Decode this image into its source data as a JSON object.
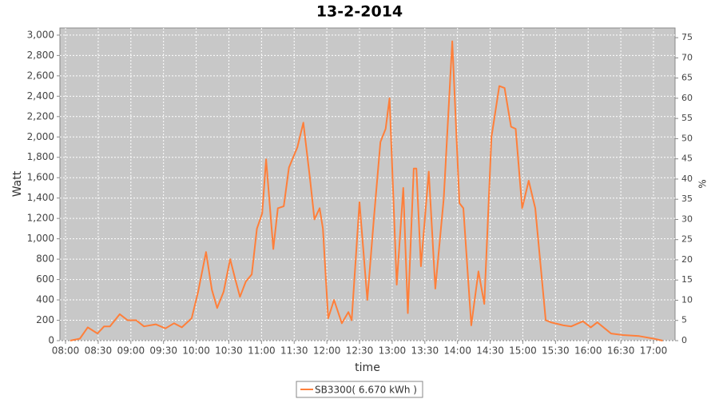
{
  "chart_data": {
    "type": "line",
    "title": "13-2-2014",
    "x_label": "time",
    "y_label": "Watt",
    "y2_label": "%",
    "xlim": [
      7.914,
      17.33
    ],
    "ylim": [
      0,
      3070
    ],
    "y2lim": [
      0,
      77.4
    ],
    "grid": true,
    "legend": "bottom",
    "xticks": [
      {
        "value": 8,
        "label": "08:00"
      },
      {
        "value": 8.5,
        "label": "08:30"
      },
      {
        "value": 9,
        "label": "09:00"
      },
      {
        "value": 9.5,
        "label": "09:30"
      },
      {
        "value": 10,
        "label": "10:00"
      },
      {
        "value": 10.5,
        "label": "10:30"
      },
      {
        "value": 11,
        "label": "11:00"
      },
      {
        "value": 11.5,
        "label": "11:30"
      },
      {
        "value": 12,
        "label": "12:00"
      },
      {
        "value": 12.5,
        "label": "12:30"
      },
      {
        "value": 13,
        "label": "13:00"
      },
      {
        "value": 13.5,
        "label": "13:30"
      },
      {
        "value": 14,
        "label": "14:00"
      },
      {
        "value": 14.5,
        "label": "14:30"
      },
      {
        "value": 15,
        "label": "15:00"
      },
      {
        "value": 15.5,
        "label": "15:30"
      },
      {
        "value": 16,
        "label": "16:00"
      },
      {
        "value": 16.5,
        "label": "16:30"
      },
      {
        "value": 17,
        "label": "17:00"
      }
    ],
    "yticks": [
      0,
      200,
      400,
      600,
      800,
      {
        "value": 1000,
        "label": "1,000"
      },
      {
        "value": 1200,
        "label": "1,200"
      },
      {
        "value": 1400,
        "label": "1,400"
      },
      {
        "value": 1600,
        "label": "1,600"
      },
      {
        "value": 1800,
        "label": "1,800"
      },
      {
        "value": 2000,
        "label": "2,000"
      },
      {
        "value": 2200,
        "label": "2,200"
      },
      {
        "value": 2400,
        "label": "2,400"
      },
      {
        "value": 2600,
        "label": "2,600"
      },
      {
        "value": 2800,
        "label": "2,800"
      },
      {
        "value": 3000,
        "label": "3,000"
      }
    ],
    "y2ticks": [
      0,
      5,
      10,
      15,
      20,
      25,
      30,
      35,
      40,
      45,
      50,
      55,
      60,
      65,
      70,
      75
    ],
    "x": [
      8.07,
      8.22,
      8.34,
      8.49,
      8.59,
      8.68,
      8.83,
      8.95,
      9.08,
      9.2,
      9.38,
      9.53,
      9.66,
      9.78,
      9.93,
      10.03,
      10.15,
      10.24,
      10.32,
      10.42,
      10.52,
      10.6,
      10.67,
      10.76,
      10.85,
      10.93,
      11.01,
      11.07,
      11.13,
      11.18,
      11.25,
      11.34,
      11.42,
      11.55,
      11.64,
      11.74,
      11.81,
      11.89,
      11.94,
      12.02,
      12.11,
      12.23,
      12.33,
      12.38,
      12.5,
      12.62,
      12.72,
      12.82,
      12.9,
      12.96,
      13.07,
      13.17,
      13.24,
      13.33,
      13.37,
      13.44,
      13.56,
      13.66,
      13.79,
      13.92,
      14.03,
      14.09,
      14.21,
      14.32,
      14.41,
      14.52,
      14.64,
      14.72,
      14.82,
      14.89,
      14.99,
      15.09,
      15.19,
      15.35,
      15.43,
      15.62,
      15.74,
      15.92,
      16.04,
      16.14,
      16.35,
      16.53,
      16.78,
      17.0,
      17.14
    ],
    "series": [
      {
        "name": "SB3300( 6.670 kWh )",
        "color": "#ff7f3a",
        "values": [
          0,
          20,
          130,
          70,
          140,
          140,
          260,
          200,
          200,
          140,
          160,
          120,
          170,
          130,
          220,
          480,
          870,
          500,
          320,
          480,
          800,
          600,
          430,
          580,
          650,
          1100,
          1250,
          1780,
          1300,
          900,
          1300,
          1320,
          1700,
          1900,
          2140,
          1600,
          1190,
          1300,
          1100,
          220,
          400,
          170,
          280,
          200,
          1360,
          400,
          1200,
          1950,
          2080,
          2380,
          550,
          1500,
          270,
          1690,
          1690,
          730,
          1660,
          510,
          1400,
          2940,
          1350,
          1300,
          150,
          680,
          360,
          2000,
          2500,
          2480,
          2100,
          2080,
          1300,
          1570,
          1300,
          200,
          180,
          150,
          140,
          190,
          130,
          180,
          70,
          55,
          45,
          20,
          0
        ]
      }
    ]
  }
}
